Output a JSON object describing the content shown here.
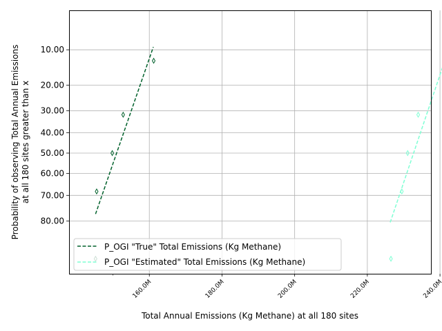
{
  "chart_data": {
    "type": "line",
    "xlabel": "Total Annual Emissions (Kg Methane) at all 180 sites",
    "ylabel_line1": "Probability of observing Total Annual Emissions",
    "ylabel_line2": "at all 180 sites greater than x",
    "x_ticks": [
      {
        "value": 160,
        "label": "160.0M"
      },
      {
        "value": 180,
        "label": "180.0M"
      },
      {
        "value": 200,
        "label": "200.0M"
      },
      {
        "value": 220,
        "label": "220.0M"
      },
      {
        "value": 240,
        "label": "240.0M"
      }
    ],
    "x_minor_ticks": [
      150
    ],
    "y_ticks": [
      {
        "value": 10,
        "label": "10.00"
      },
      {
        "value": 20,
        "label": "20.00"
      },
      {
        "value": 30,
        "label": "30.00"
      },
      {
        "value": 40,
        "label": "40.00"
      },
      {
        "value": 50,
        "label": "50.00"
      },
      {
        "value": 60,
        "label": "60.00"
      },
      {
        "value": 70,
        "label": "70.00"
      },
      {
        "value": 80,
        "label": "80.00"
      }
    ],
    "y_scale": "normal-probability",
    "y_inverted": true,
    "grid": true,
    "legend_position": "lower-left",
    "series": [
      {
        "name": "P_OGI \"True\" Total Emissions (Kg Methane)",
        "color": "#00602b",
        "line_x": [
          145.2,
          161.1
        ],
        "line_y": [
          77.5,
          9.4
        ],
        "points": [
          {
            "x": 145.2,
            "y": 90.5
          },
          {
            "x": 145.5,
            "y": 68.3
          },
          {
            "x": 149.8,
            "y": 50.0
          },
          {
            "x": 152.8,
            "y": 31.7
          },
          {
            "x": 161.2,
            "y": 12.6
          }
        ]
      },
      {
        "name": "P_OGI \"Estimated\" Total Emissions (Kg Methane)",
        "color": "#7fffd4",
        "line_x": [
          226.3,
          243.3
        ],
        "line_y": [
          80.5,
          7.9
        ],
        "points": [
          {
            "x": 226.5,
            "y": 90.5
          },
          {
            "x": 229.5,
            "y": 68.3
          },
          {
            "x": 231.1,
            "y": 50.0
          },
          {
            "x": 234.0,
            "y": 31.7
          },
          {
            "x": 243.6,
            "y": 12.6
          }
        ]
      }
    ]
  }
}
